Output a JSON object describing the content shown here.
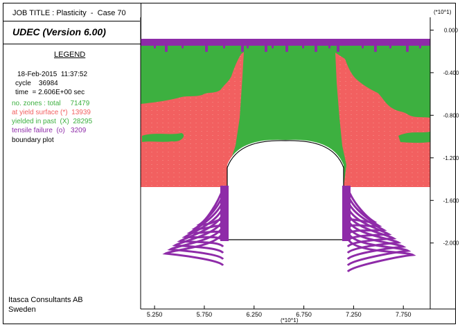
{
  "header": {
    "job_title": "JOB TITLE : Plasticity  -  Case 70",
    "program": "UDEC (Version 6.00)",
    "scale_note": "(*10^1)"
  },
  "legend": {
    "heading": "LEGEND",
    "date": "18-Feb-2015  11:37:52",
    "cycle": "cycle    36984",
    "time": "time  = 2.606E+00 sec",
    "zones_total": "no. zones : total     71479",
    "yield_surface": "at yield surface (*)  13939",
    "yielded_past": "yielded in past  (X)  28295",
    "tensile_failure": "tensile failure  (o)   3209",
    "boundary": "boundary plot"
  },
  "footer": {
    "company": "Itasca Consultants AB",
    "country": "Sweden"
  },
  "colors": {
    "green": "#3db040",
    "red": "#f26060",
    "purple": "#8e2ba8",
    "black": "#000000"
  },
  "chart_data": {
    "type": "scatter",
    "x_ticks": [
      "5.250",
      "5.750",
      "6.250",
      "6.750",
      "7.250",
      "7.750"
    ],
    "x_tick_values": [
      5.25,
      5.75,
      6.25,
      6.75,
      7.25,
      7.75
    ],
    "x_scale_note": "(*10^1)",
    "y_ticks": [
      "0.000",
      "-0.400",
      "-0.800",
      "-1.200",
      "-1.600",
      "-2.000"
    ],
    "y_tick_values": [
      0.0,
      -0.4,
      -0.8,
      -1.2,
      -1.6,
      -2.0
    ],
    "y_scale_note": "(*10^1)",
    "xlim": [
      5.11,
      8.02
    ],
    "ylim": [
      -2.62,
      0.12
    ],
    "series": [
      {
        "name": "yielded in past (X)",
        "color": "#3db040"
      },
      {
        "name": "at yield surface (*)",
        "color": "#f26060"
      },
      {
        "name": "tensile failure (o)",
        "color": "#8e2ba8"
      },
      {
        "name": "boundary plot",
        "color": "#000000"
      }
    ],
    "grid": false,
    "legend_position": "left panel"
  }
}
